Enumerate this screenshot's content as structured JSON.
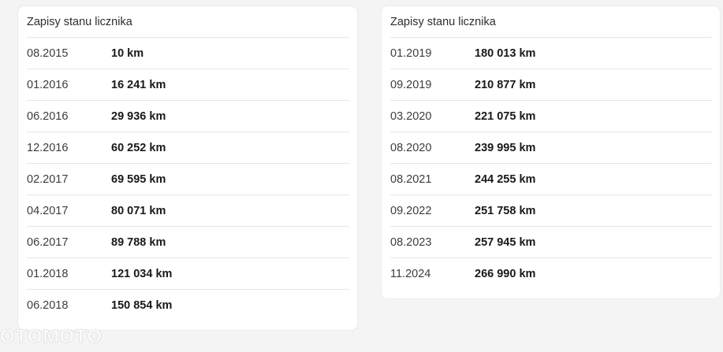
{
  "left_panel": {
    "title": "Zapisy stanu licznika",
    "rows": [
      {
        "date": "08.2015",
        "km": "10 km"
      },
      {
        "date": "01.2016",
        "km": "16 241 km"
      },
      {
        "date": "06.2016",
        "km": "29 936 km"
      },
      {
        "date": "12.2016",
        "km": "60 252 km"
      },
      {
        "date": "02.2017",
        "km": "69 595 km"
      },
      {
        "date": "04.2017",
        "km": "80 071 km"
      },
      {
        "date": "06.2017",
        "km": "89 788 km"
      },
      {
        "date": "01.2018",
        "km": "121 034 km"
      },
      {
        "date": "06.2018",
        "km": "150 854 km"
      }
    ]
  },
  "right_panel": {
    "title": "Zapisy stanu licznika",
    "rows": [
      {
        "date": "01.2019",
        "km": "180 013 km"
      },
      {
        "date": "09.2019",
        "km": "210 877 km"
      },
      {
        "date": "03.2020",
        "km": "221 075 km"
      },
      {
        "date": "08.2020",
        "km": "239 995 km"
      },
      {
        "date": "08.2021",
        "km": "244 255 km"
      },
      {
        "date": "09.2022",
        "km": "251 758 km"
      },
      {
        "date": "08.2023",
        "km": "257 945 km"
      },
      {
        "date": "11.2024",
        "km": "266 990 km"
      }
    ]
  },
  "watermark": "OTOMOTO"
}
